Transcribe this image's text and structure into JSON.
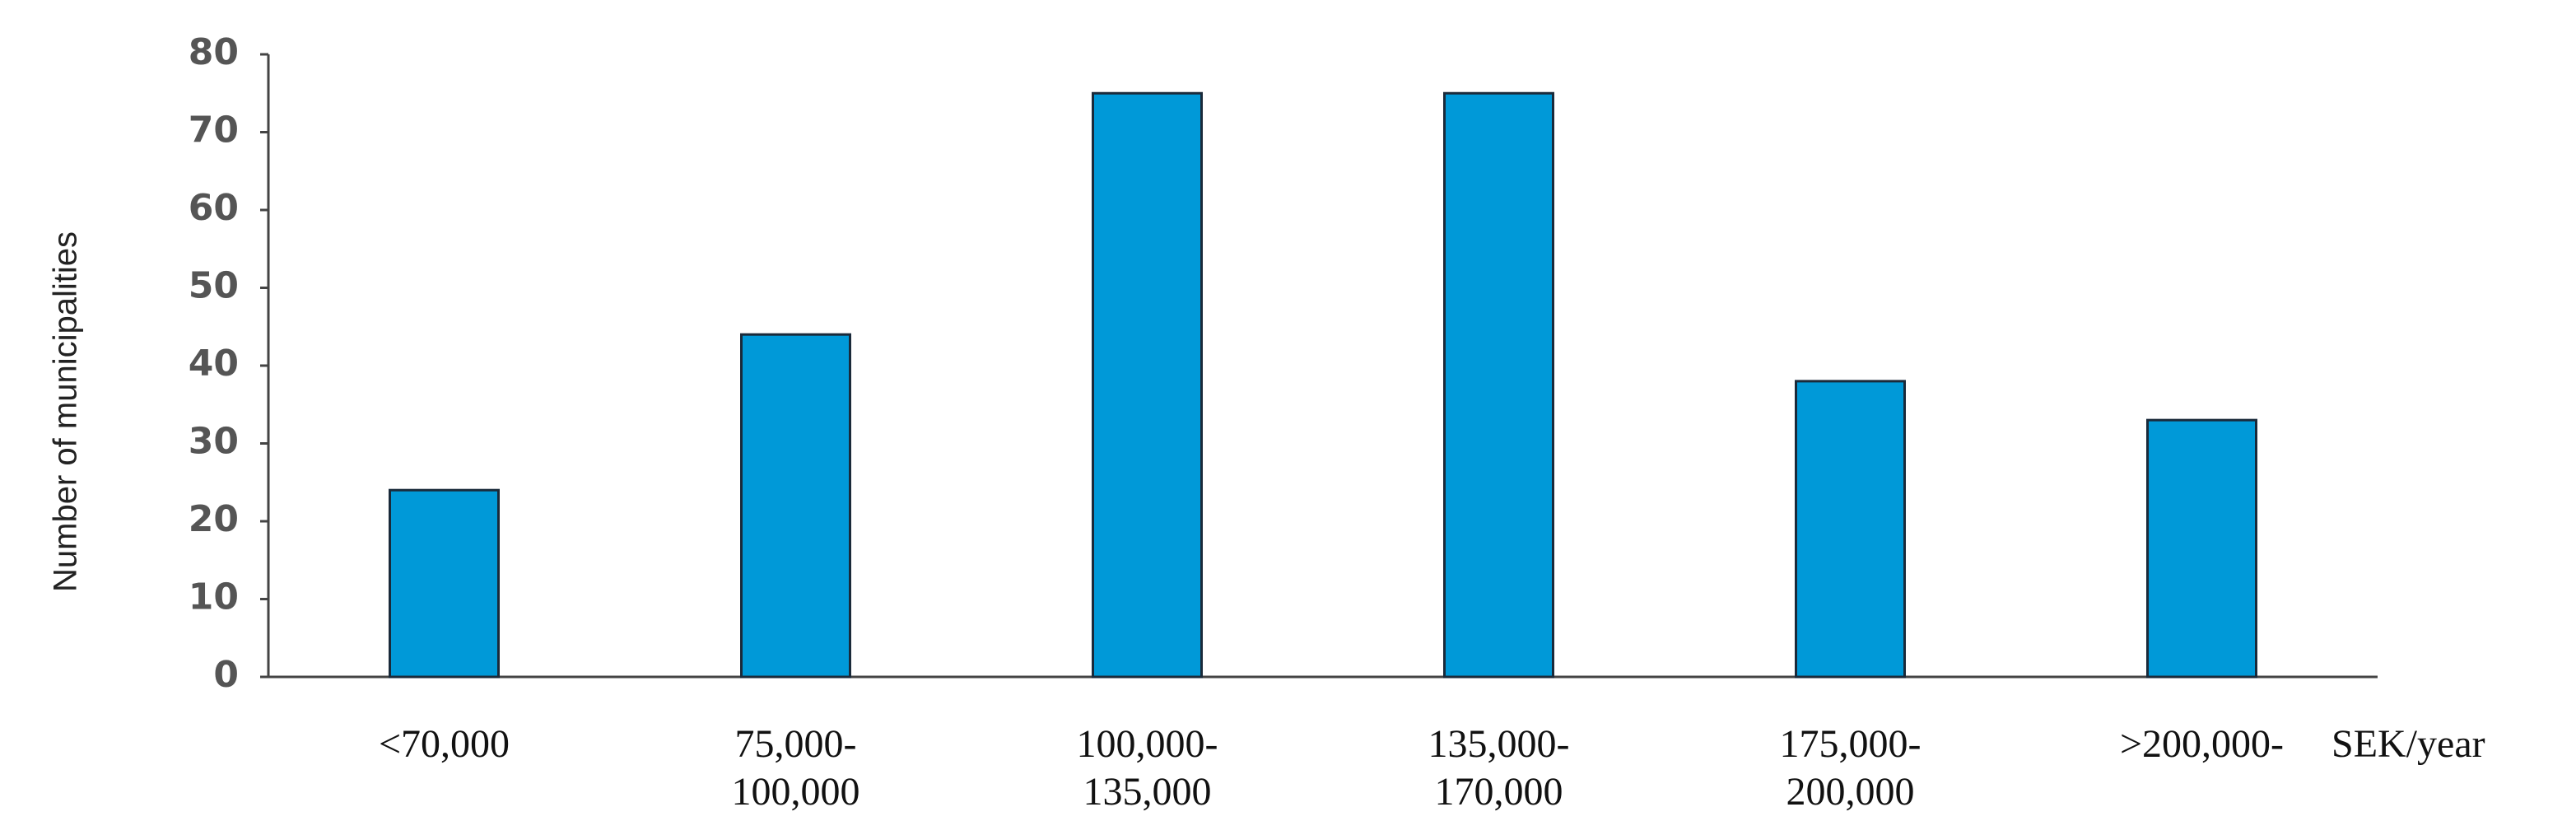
{
  "chart_data": {
    "type": "bar",
    "y_label": "Number of municipalities",
    "x_label": "SEK/year",
    "categories": [
      "<70,000",
      "75,000-\n100,000",
      "100,000-\n135,000",
      "135,000-\n170,000",
      "175,000-\n200,000",
      ">200,000-"
    ],
    "values": [
      24,
      44,
      75,
      75,
      38,
      33
    ],
    "color": "#0099d8",
    "ylim": [
      0,
      80
    ],
    "yticks": [
      0,
      10,
      20,
      30,
      40,
      50,
      60,
      70,
      80
    ],
    "grid": false
  }
}
